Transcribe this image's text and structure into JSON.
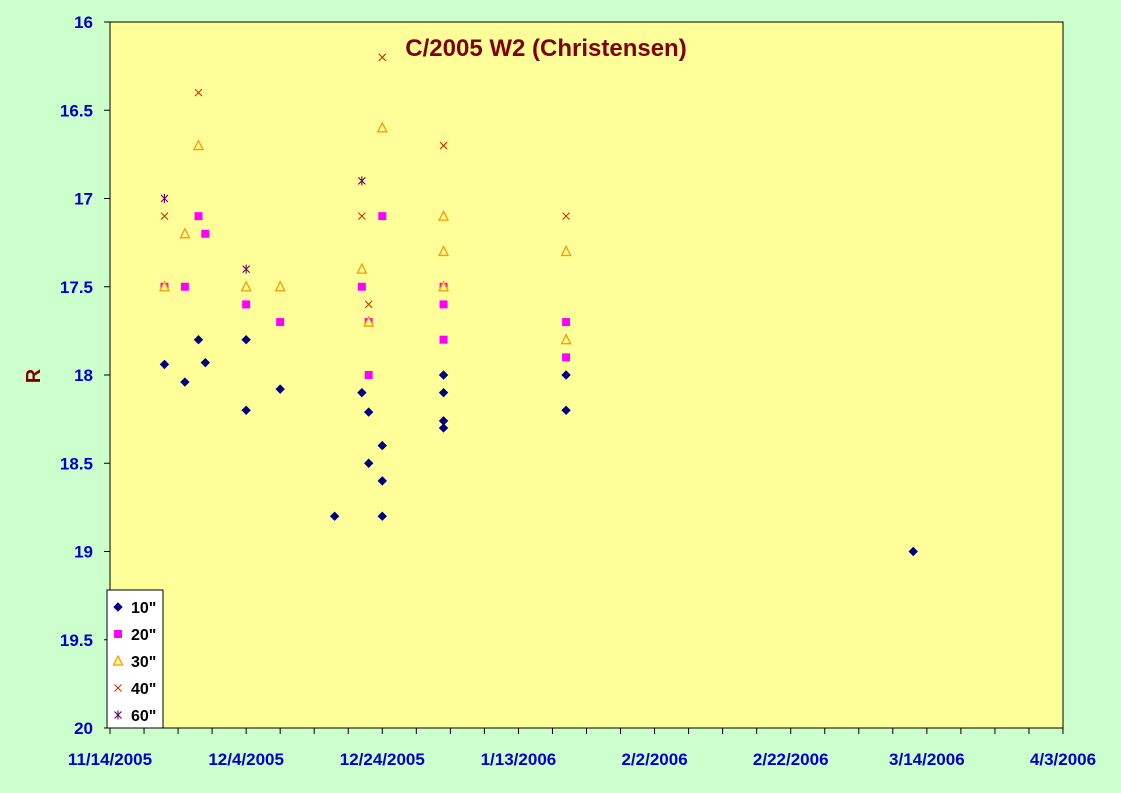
{
  "chart_data": {
    "type": "scatter",
    "title": "C/2005 W2 (Christensen)",
    "ylabel": "R",
    "xlabel": "",
    "ylim": [
      16,
      20
    ],
    "y_reversed": true,
    "xlim": [
      "2005-11-14",
      "2006-04-03"
    ],
    "x_ticks": [
      "11/14/2005",
      "12/4/2005",
      "12/24/2005",
      "1/13/2006",
      "2/2/2006",
      "2/22/2006",
      "3/14/2006",
      "4/3/2006"
    ],
    "y_ticks": [
      "16",
      "16.5",
      "17",
      "17.5",
      "18",
      "18.5",
      "19",
      "19.5",
      "20"
    ],
    "grid": false,
    "legend_position": "bottom-left",
    "colors": {
      "plot_bg": "#ffff99",
      "page_bg": "#ccffcc",
      "axis_text": "#0000cc",
      "title": "#800000"
    },
    "series": [
      {
        "name": "10\"",
        "marker": "diamond",
        "color": "#000080",
        "points": [
          [
            "2005-11-22",
            17.94
          ],
          [
            "2005-11-25",
            18.04
          ],
          [
            "2005-11-27",
            17.8
          ],
          [
            "2005-11-28",
            17.93
          ],
          [
            "2005-12-04",
            17.8
          ],
          [
            "2005-12-04",
            18.2
          ],
          [
            "2005-12-09",
            18.08
          ],
          [
            "2005-12-17",
            18.8
          ],
          [
            "2005-12-21",
            18.1
          ],
          [
            "2005-12-22",
            18.21
          ],
          [
            "2005-12-22",
            18.5
          ],
          [
            "2005-12-24",
            18.4
          ],
          [
            "2005-12-24",
            18.6
          ],
          [
            "2005-12-24",
            18.8
          ],
          [
            "2006-01-02",
            18.0
          ],
          [
            "2006-01-02",
            18.1
          ],
          [
            "2006-01-02",
            18.26
          ],
          [
            "2006-01-02",
            18.3
          ],
          [
            "2006-01-20",
            18.0
          ],
          [
            "2006-01-20",
            18.2
          ],
          [
            "2006-03-12",
            19.0
          ]
        ]
      },
      {
        "name": "20\"",
        "marker": "square",
        "color": "#ff00ff",
        "points": [
          [
            "2005-11-22",
            17.5
          ],
          [
            "2005-11-25",
            17.5
          ],
          [
            "2005-11-27",
            17.1
          ],
          [
            "2005-11-28",
            17.2
          ],
          [
            "2005-12-04",
            17.6
          ],
          [
            "2005-12-09",
            17.7
          ],
          [
            "2005-12-21",
            17.5
          ],
          [
            "2005-12-22",
            17.7
          ],
          [
            "2005-12-22",
            18.0
          ],
          [
            "2005-12-24",
            17.1
          ],
          [
            "2006-01-02",
            17.5
          ],
          [
            "2006-01-02",
            17.6
          ],
          [
            "2006-01-02",
            17.8
          ],
          [
            "2006-01-20",
            17.7
          ],
          [
            "2006-01-20",
            17.9
          ]
        ]
      },
      {
        "name": "30\"",
        "marker": "triangle",
        "color": "#ff9900",
        "points": [
          [
            "2005-11-22",
            17.5
          ],
          [
            "2005-11-25",
            17.2
          ],
          [
            "2005-11-27",
            16.7
          ],
          [
            "2005-12-04",
            17.5
          ],
          [
            "2005-12-09",
            17.5
          ],
          [
            "2005-12-21",
            17.4
          ],
          [
            "2005-12-22",
            17.7
          ],
          [
            "2005-12-24",
            16.6
          ],
          [
            "2006-01-02",
            17.1
          ],
          [
            "2006-01-02",
            17.3
          ],
          [
            "2006-01-02",
            17.5
          ],
          [
            "2006-01-20",
            17.3
          ],
          [
            "2006-01-20",
            17.8
          ]
        ]
      },
      {
        "name": "40\"",
        "marker": "x",
        "color": "#cc3300",
        "points": [
          [
            "2005-11-22",
            17.1
          ],
          [
            "2005-11-27",
            16.4
          ],
          [
            "2005-12-21",
            17.1
          ],
          [
            "2005-12-22",
            17.6
          ],
          [
            "2005-12-24",
            16.2
          ],
          [
            "2006-01-02",
            16.7
          ],
          [
            "2006-01-20",
            17.1
          ]
        ]
      },
      {
        "name": "60\"",
        "marker": "star",
        "color": "#660066",
        "points": [
          [
            "2005-11-22",
            17.0
          ],
          [
            "2005-12-04",
            17.4
          ],
          [
            "2005-12-21",
            16.9
          ]
        ]
      }
    ]
  }
}
